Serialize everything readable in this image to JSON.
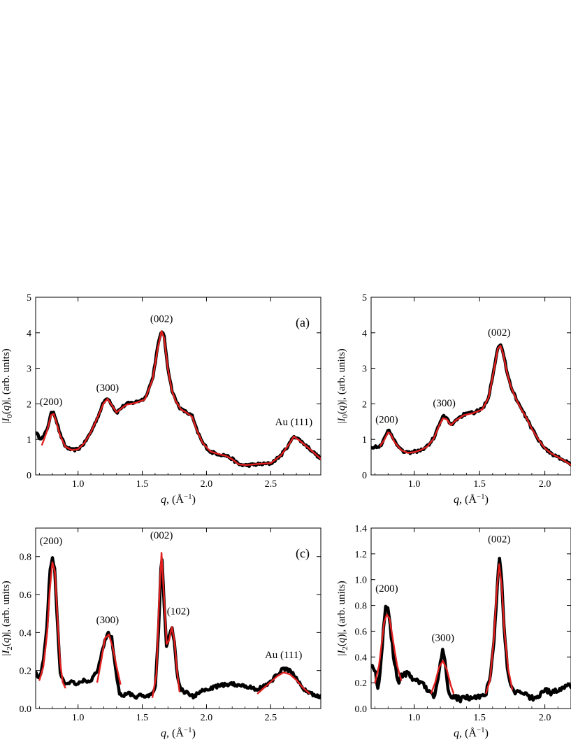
{
  "chart_data": [
    {
      "id": "a",
      "type": "line",
      "panel_label": "(a)",
      "xlabel": "q, (Å⁻¹)",
      "ylabel": "|I0(q)|, (arb. units)",
      "xlim": [
        0.67,
        2.89
      ],
      "ylim": [
        0,
        5
      ],
      "xticks": [
        1.0,
        1.5,
        2.0,
        2.5
      ],
      "xtick_labels": [
        "1.0",
        "1.5",
        "2.0",
        "2.5"
      ],
      "yticks": [
        0,
        1,
        2,
        3,
        4,
        5
      ],
      "ytick_labels": [
        "0",
        "1",
        "2",
        "3",
        "4",
        "5"
      ],
      "noise": 0.03,
      "series": [
        {
          "color": "#000000",
          "role": "data",
          "x": [
            0.67,
            0.7,
            0.73,
            0.76,
            0.79,
            0.81,
            0.83,
            0.86,
            0.9,
            0.95,
            1.0,
            1.05,
            1.1,
            1.15,
            1.2,
            1.23,
            1.26,
            1.3,
            1.34,
            1.38,
            1.45,
            1.52,
            1.58,
            1.62,
            1.65,
            1.67,
            1.7,
            1.73,
            1.76,
            1.8,
            1.85,
            1.89,
            1.92,
            1.97,
            2.03,
            2.1,
            2.15,
            2.2,
            2.25,
            2.3,
            2.35,
            2.4,
            2.5,
            2.58,
            2.65,
            2.68,
            2.72,
            2.8,
            2.89
          ],
          "y": [
            1.2,
            1.05,
            1.05,
            1.3,
            1.72,
            1.78,
            1.55,
            1.15,
            0.8,
            0.7,
            0.72,
            0.9,
            1.2,
            1.6,
            2.05,
            2.18,
            2.0,
            1.75,
            1.9,
            2.0,
            2.05,
            2.15,
            2.7,
            3.6,
            4.08,
            3.9,
            3.0,
            2.4,
            2.1,
            1.85,
            1.75,
            1.65,
            1.3,
            0.9,
            0.65,
            0.58,
            0.55,
            0.45,
            0.3,
            0.27,
            0.28,
            0.3,
            0.32,
            0.55,
            0.9,
            1.1,
            1.0,
            0.75,
            0.45
          ]
        },
        {
          "color": "#e32020",
          "role": "fit",
          "x": [
            0.72,
            0.76,
            0.79,
            0.81,
            0.83,
            0.86,
            0.9,
            0.95,
            1.0,
            1.05,
            1.1,
            1.15,
            1.2,
            1.23,
            1.26,
            1.3,
            1.34,
            1.38,
            1.45,
            1.52,
            1.58,
            1.62,
            1.65,
            1.67,
            1.7,
            1.73,
            1.76,
            1.8,
            1.85,
            1.89,
            1.92,
            1.97,
            2.03,
            2.1,
            2.15,
            2.2,
            2.25,
            2.3,
            2.35,
            2.4,
            2.5,
            2.58,
            2.65,
            2.68,
            2.72,
            2.8,
            2.89
          ],
          "y": [
            0.85,
            1.25,
            1.68,
            1.72,
            1.5,
            1.12,
            0.8,
            0.7,
            0.72,
            0.9,
            1.2,
            1.6,
            2.02,
            2.14,
            1.98,
            1.76,
            1.88,
            1.98,
            2.03,
            2.12,
            2.68,
            3.55,
            4.05,
            3.85,
            2.98,
            2.38,
            2.08,
            1.85,
            1.74,
            1.63,
            1.3,
            0.9,
            0.66,
            0.58,
            0.54,
            0.44,
            0.3,
            0.28,
            0.29,
            0.31,
            0.33,
            0.55,
            0.9,
            1.08,
            0.98,
            0.74,
            0.45
          ]
        }
      ],
      "annotations": [
        {
          "text": "(200)",
          "x": 0.79,
          "y": 1.97
        },
        {
          "text": "(300)",
          "x": 1.23,
          "y": 2.36
        },
        {
          "text": "(002)",
          "x": 1.65,
          "y": 4.3
        },
        {
          "text": "Au (111)",
          "x": 2.68,
          "y": 1.4
        }
      ]
    },
    {
      "id": "b",
      "type": "line",
      "panel_label": "",
      "xlabel": "q, (Å⁻¹)",
      "ylabel": "|I0(q)|, (arb. units)",
      "xlim": [
        0.67,
        2.2
      ],
      "ylim": [
        0,
        5
      ],
      "xticks": [
        1.0,
        1.5,
        2.0
      ],
      "xtick_labels": [
        "1.0",
        "1.5",
        "2.0"
      ],
      "yticks": [
        0,
        1,
        2,
        3,
        4,
        5
      ],
      "ytick_labels": [
        "0",
        "1",
        "2",
        "3",
        "4",
        "5"
      ],
      "noise": 0.03,
      "series": [
        {
          "color": "#000000",
          "role": "data",
          "x": [
            0.67,
            0.7,
            0.74,
            0.77,
            0.8,
            0.82,
            0.85,
            0.9,
            0.95,
            1.0,
            1.05,
            1.1,
            1.15,
            1.19,
            1.22,
            1.25,
            1.28,
            1.32,
            1.38,
            1.45,
            1.52,
            1.57,
            1.61,
            1.64,
            1.66,
            1.68,
            1.71,
            1.74,
            1.78,
            1.82,
            1.86,
            1.9,
            1.95,
            2.0,
            2.05,
            2.1,
            2.15,
            2.2
          ],
          "y": [
            0.8,
            0.78,
            0.82,
            1.0,
            1.25,
            1.2,
            0.95,
            0.7,
            0.62,
            0.65,
            0.7,
            0.8,
            1.05,
            1.4,
            1.65,
            1.6,
            1.4,
            1.55,
            1.7,
            1.75,
            1.85,
            2.2,
            3.0,
            3.6,
            3.68,
            3.45,
            2.9,
            2.5,
            2.15,
            1.85,
            1.6,
            1.3,
            1.0,
            0.75,
            0.6,
            0.5,
            0.4,
            0.28
          ]
        },
        {
          "color": "#e32020",
          "role": "fit",
          "x": [
            0.74,
            0.77,
            0.8,
            0.82,
            0.85,
            0.9,
            0.95,
            1.0,
            1.05,
            1.1,
            1.15,
            1.19,
            1.22,
            1.25,
            1.28,
            1.32,
            1.38,
            1.45,
            1.52,
            1.57,
            1.61,
            1.64,
            1.66,
            1.68,
            1.71,
            1.74,
            1.78,
            1.82,
            1.86,
            1.9,
            1.95,
            2.0,
            2.05,
            2.1,
            2.15,
            2.2
          ],
          "y": [
            0.82,
            0.98,
            1.2,
            1.15,
            0.92,
            0.7,
            0.62,
            0.64,
            0.7,
            0.8,
            1.03,
            1.38,
            1.6,
            1.56,
            1.4,
            1.54,
            1.68,
            1.74,
            1.84,
            2.18,
            2.95,
            3.55,
            3.64,
            3.42,
            2.88,
            2.48,
            2.13,
            1.84,
            1.6,
            1.3,
            1.0,
            0.75,
            0.6,
            0.5,
            0.4,
            0.28
          ]
        }
      ],
      "annotations": [
        {
          "text": "(200)",
          "x": 0.79,
          "y": 1.47
        },
        {
          "text": "(300)",
          "x": 1.23,
          "y": 1.93
        },
        {
          "text": "(002)",
          "x": 1.65,
          "y": 3.92
        }
      ]
    },
    {
      "id": "c",
      "type": "line",
      "panel_label": "(c)",
      "xlabel": "q, (Å⁻¹)",
      "ylabel": "|I2(q)|, (arb. units)",
      "xlim": [
        0.67,
        2.89
      ],
      "ylim": [
        0,
        0.95
      ],
      "xticks": [
        1.0,
        1.5,
        2.0,
        2.5
      ],
      "xtick_labels": [
        "1.0",
        "1.5",
        "2.0",
        "2.5"
      ],
      "yticks": [
        0,
        0.2,
        0.4,
        0.6,
        0.8
      ],
      "ytick_labels": [
        "0.0",
        "0.2",
        "0.4",
        "0.6",
        "0.8"
      ],
      "noise": 0.04,
      "series": [
        {
          "color": "#000000",
          "role": "data",
          "x": [
            0.67,
            0.7,
            0.73,
            0.76,
            0.78,
            0.8,
            0.82,
            0.84,
            0.86,
            0.88,
            0.91,
            0.95,
            1.0,
            1.05,
            1.1,
            1.15,
            1.2,
            1.23,
            1.26,
            1.28,
            1.3,
            1.32,
            1.35,
            1.4,
            1.45,
            1.5,
            1.55,
            1.6,
            1.63,
            1.65,
            1.67,
            1.69,
            1.71,
            1.73,
            1.75,
            1.77,
            1.8,
            1.85,
            1.9,
            1.95,
            2.0,
            2.1,
            2.2,
            2.3,
            2.4,
            2.5,
            2.55,
            2.6,
            2.65,
            2.7,
            2.75,
            2.8,
            2.89
          ],
          "y": [
            0.2,
            0.15,
            0.25,
            0.45,
            0.72,
            0.8,
            0.72,
            0.45,
            0.2,
            0.15,
            0.12,
            0.14,
            0.13,
            0.15,
            0.14,
            0.2,
            0.33,
            0.4,
            0.38,
            0.28,
            0.18,
            0.08,
            0.07,
            0.08,
            0.06,
            0.07,
            0.06,
            0.1,
            0.45,
            0.84,
            0.55,
            0.32,
            0.38,
            0.43,
            0.35,
            0.18,
            0.1,
            0.08,
            0.06,
            0.09,
            0.1,
            0.12,
            0.13,
            0.12,
            0.1,
            0.14,
            0.18,
            0.21,
            0.2,
            0.16,
            0.11,
            0.08,
            0.06
          ]
        },
        {
          "color": "#e32020",
          "role": "fit",
          "x": [
            0.7,
            0.73,
            0.76,
            0.78,
            0.8,
            0.82,
            0.84,
            0.86,
            0.88,
            0.9
          ],
          "y": [
            0.15,
            0.22,
            0.4,
            0.62,
            0.77,
            0.72,
            0.48,
            0.25,
            0.14,
            0.11
          ]
        },
        {
          "color": "#e32020",
          "role": "fit",
          "x": [
            1.15,
            1.18,
            1.21,
            1.24,
            1.27,
            1.3,
            1.33
          ],
          "y": [
            0.14,
            0.25,
            0.37,
            0.39,
            0.32,
            0.22,
            0.13
          ]
        },
        {
          "color": "#e32020",
          "role": "fit",
          "x": [
            1.58,
            1.61,
            1.63,
            1.65,
            1.67,
            1.69,
            1.71,
            1.73,
            1.75,
            1.77,
            1.79
          ],
          "y": [
            0.06,
            0.18,
            0.55,
            0.82,
            0.58,
            0.34,
            0.36,
            0.43,
            0.36,
            0.2,
            0.09
          ]
        },
        {
          "color": "#e32020",
          "role": "fit",
          "x": [
            2.4,
            2.45,
            2.5,
            2.55,
            2.6,
            2.65,
            2.7,
            2.75,
            2.8
          ],
          "y": [
            0.08,
            0.11,
            0.14,
            0.17,
            0.19,
            0.18,
            0.15,
            0.11,
            0.08
          ]
        }
      ],
      "annotations": [
        {
          "text": "(200)",
          "x": 0.79,
          "y": 0.865
        },
        {
          "text": "(300)",
          "x": 1.23,
          "y": 0.45
        },
        {
          "text": "(002)",
          "x": 1.65,
          "y": 0.895
        },
        {
          "text": "(102)",
          "x": 1.78,
          "y": 0.495
        },
        {
          "text": "Au (111)",
          "x": 2.6,
          "y": 0.265
        }
      ]
    },
    {
      "id": "d",
      "type": "line",
      "panel_label": "",
      "xlabel": "q, (Å⁻¹)",
      "ylabel": "|I2(q)|, (arb. units)",
      "xlim": [
        0.67,
        2.2
      ],
      "ylim": [
        0,
        1.4
      ],
      "xticks": [
        1.0,
        1.5,
        2.0
      ],
      "xtick_labels": [
        "1.0",
        "1.5",
        "2.0"
      ],
      "yticks": [
        0,
        0.2,
        0.4,
        0.6,
        0.8,
        1.0,
        1.2,
        1.4
      ],
      "ytick_labels": [
        "0.0",
        "0.2",
        "0.4",
        "0.6",
        "0.8",
        "1.0",
        "1.2",
        "1.4"
      ],
      "noise": 0.06,
      "series": [
        {
          "color": "#000000",
          "role": "data",
          "x": [
            0.67,
            0.7,
            0.72,
            0.74,
            0.76,
            0.78,
            0.8,
            0.82,
            0.84,
            0.86,
            0.88,
            0.9,
            0.95,
            1.0,
            1.05,
            1.1,
            1.15,
            1.18,
            1.2,
            1.22,
            1.24,
            1.26,
            1.28,
            1.3,
            1.35,
            1.4,
            1.45,
            1.5,
            1.55,
            1.58,
            1.61,
            1.63,
            1.65,
            1.67,
            1.69,
            1.71,
            1.73,
            1.76,
            1.8,
            1.85,
            1.9,
            1.95,
            2.0,
            2.05,
            2.1,
            2.15,
            2.2
          ],
          "y": [
            0.35,
            0.3,
            0.15,
            0.3,
            0.55,
            0.8,
            0.76,
            0.6,
            0.42,
            0.3,
            0.2,
            0.25,
            0.28,
            0.22,
            0.2,
            0.15,
            0.1,
            0.2,
            0.38,
            0.45,
            0.32,
            0.15,
            0.08,
            0.1,
            0.07,
            0.09,
            0.08,
            0.1,
            0.12,
            0.25,
            0.5,
            0.85,
            1.18,
            1.0,
            0.6,
            0.35,
            0.22,
            0.12,
            0.14,
            0.12,
            0.08,
            0.1,
            0.15,
            0.12,
            0.14,
            0.16,
            0.18
          ]
        },
        {
          "color": "#e32020",
          "role": "fit",
          "x": [
            0.7,
            0.73,
            0.75,
            0.77,
            0.79,
            0.81,
            0.83,
            0.85,
            0.87,
            0.9
          ],
          "y": [
            0.2,
            0.33,
            0.5,
            0.67,
            0.73,
            0.7,
            0.58,
            0.45,
            0.33,
            0.22
          ]
        },
        {
          "color": "#e32020",
          "role": "fit",
          "x": [
            1.13,
            1.16,
            1.19,
            1.22,
            1.25,
            1.28,
            1.3
          ],
          "y": [
            0.12,
            0.2,
            0.32,
            0.37,
            0.3,
            0.18,
            0.12
          ]
        },
        {
          "color": "#e32020",
          "role": "fit",
          "x": [
            1.55,
            1.58,
            1.61,
            1.63,
            1.65,
            1.67,
            1.69,
            1.72,
            1.75
          ],
          "y": [
            0.12,
            0.22,
            0.55,
            0.9,
            1.12,
            0.95,
            0.6,
            0.3,
            0.15
          ]
        }
      ],
      "annotations": [
        {
          "text": "(200)",
          "x": 0.79,
          "y": 0.905
        },
        {
          "text": "(300)",
          "x": 1.22,
          "y": 0.525
        },
        {
          "text": "(002)",
          "x": 1.65,
          "y": 1.29
        }
      ]
    }
  ]
}
